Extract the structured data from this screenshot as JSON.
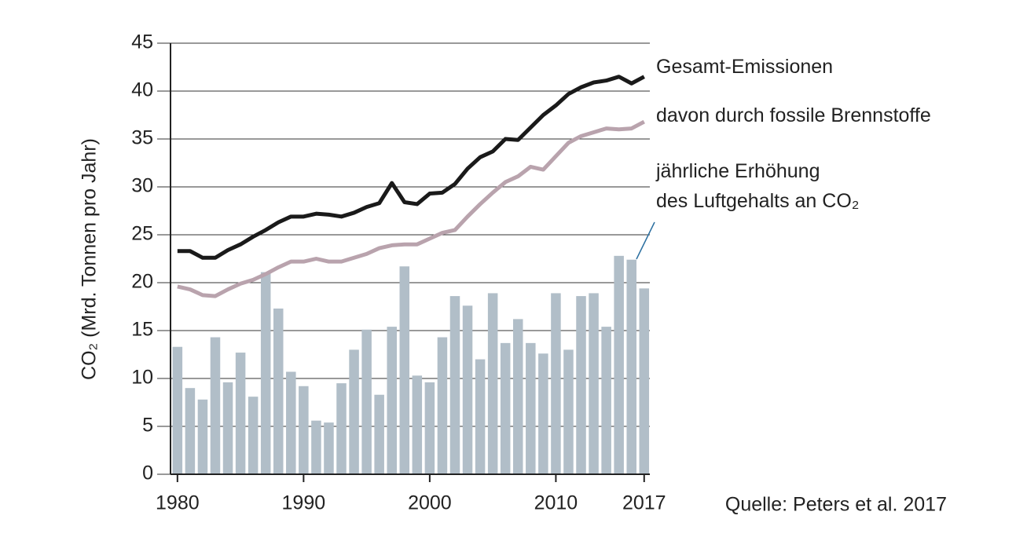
{
  "chart_data": {
    "type": "combo",
    "y_label": "CO₂ (Mrd. Tonnen pro Jahr)",
    "source": "Quelle: Peters et al. 2017",
    "source_color": "#1a9ad6",
    "x": [
      1980,
      1981,
      1982,
      1983,
      1984,
      1985,
      1986,
      1987,
      1988,
      1989,
      1990,
      1991,
      1992,
      1993,
      1994,
      1995,
      1996,
      1997,
      1998,
      1999,
      2000,
      2001,
      2002,
      2003,
      2004,
      2005,
      2006,
      2007,
      2008,
      2009,
      2010,
      2011,
      2012,
      2013,
      2014,
      2015,
      2016,
      2017
    ],
    "xlim": [
      1979.45,
      2017.45
    ],
    "xticks": [
      1980,
      1990,
      2000,
      2010,
      2017
    ],
    "ylim": [
      0,
      45
    ],
    "yticks": [
      0,
      5,
      10,
      15,
      20,
      25,
      30,
      35,
      40,
      45
    ],
    "grid": true,
    "series": [
      {
        "name": "jährliche Erhöhung\ndes Luftgehalts an CO₂",
        "type": "bar",
        "color": "#b1bec8",
        "values": [
          13.3,
          9.0,
          7.8,
          14.3,
          9.6,
          12.7,
          8.1,
          21.1,
          17.3,
          10.7,
          9.2,
          5.6,
          5.4,
          9.5,
          13.0,
          15.1,
          8.3,
          15.4,
          21.7,
          10.3,
          9.6,
          14.3,
          18.6,
          17.6,
          12.0,
          18.9,
          13.7,
          16.2,
          13.7,
          12.6,
          18.9,
          13.0,
          18.6,
          18.9,
          15.4,
          22.8,
          22.4,
          19.4
        ]
      },
      {
        "name": "Gesamt-Emissionen",
        "type": "line",
        "color": "#1a1a1a",
        "values": [
          23.3,
          23.3,
          22.6,
          22.6,
          23.4,
          24.0,
          24.8,
          25.5,
          26.3,
          26.9,
          26.9,
          27.2,
          27.1,
          26.9,
          27.3,
          27.9,
          28.3,
          30.4,
          28.4,
          28.2,
          29.3,
          29.4,
          30.3,
          31.9,
          33.1,
          33.7,
          35.0,
          34.9,
          36.2,
          37.5,
          38.5,
          39.7,
          40.4,
          40.9,
          41.1,
          41.5,
          40.8,
          41.5
        ]
      },
      {
        "name": "davon durch fossile Brennstoffe",
        "type": "line",
        "color": "#b9a3ad",
        "values": [
          19.6,
          19.3,
          18.7,
          18.6,
          19.3,
          19.9,
          20.3,
          20.9,
          21.6,
          22.2,
          22.2,
          22.5,
          22.2,
          22.2,
          22.6,
          23.0,
          23.6,
          23.9,
          24.0,
          24.0,
          24.6,
          25.2,
          25.5,
          26.9,
          28.2,
          29.4,
          30.5,
          31.1,
          32.1,
          31.8,
          33.2,
          34.6,
          35.3,
          35.7,
          36.1,
          36.0,
          36.1,
          36.8
        ]
      }
    ]
  }
}
